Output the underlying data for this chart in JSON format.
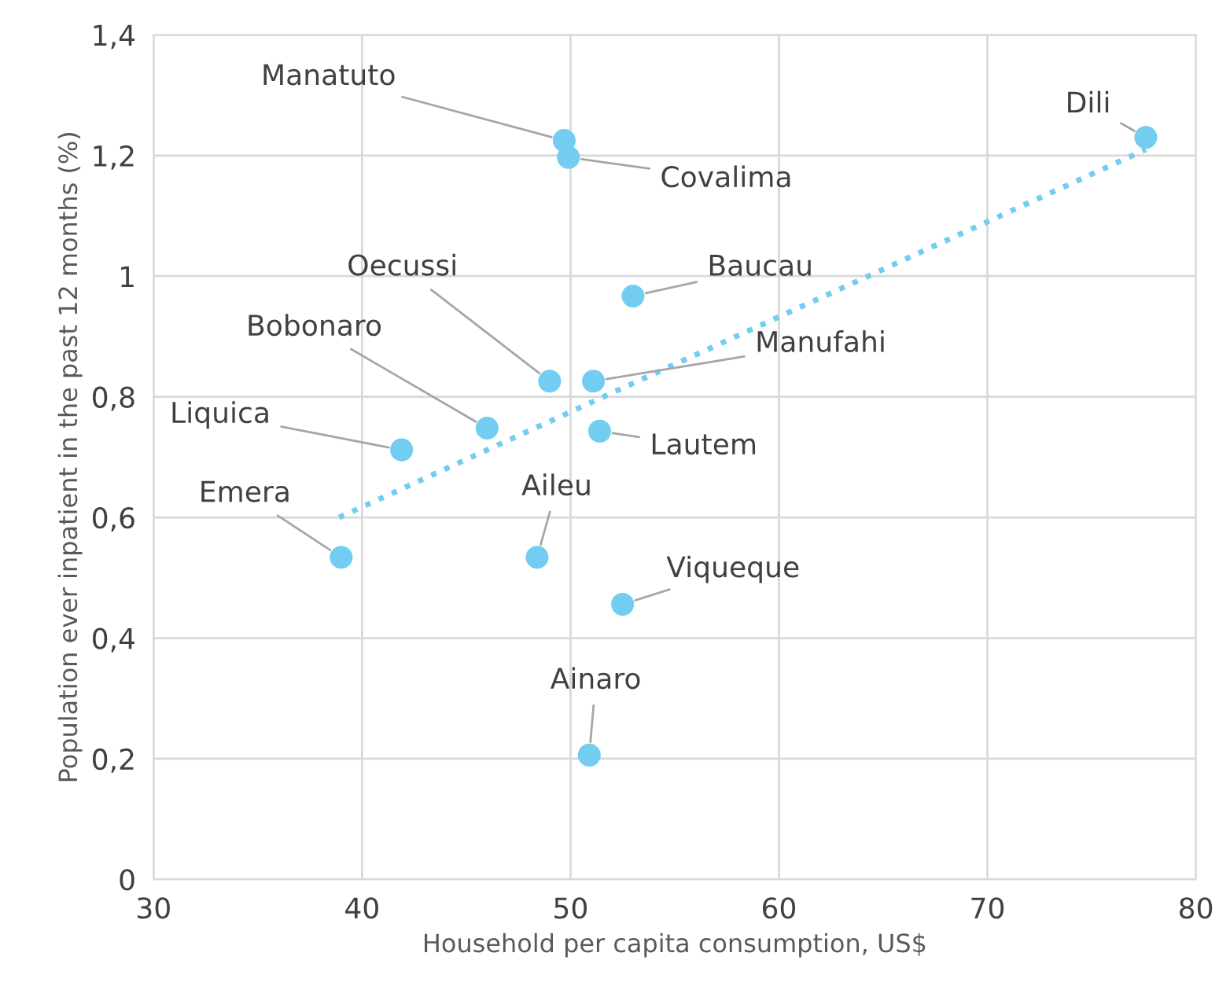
{
  "chart_data": {
    "type": "scatter",
    "xlabel": "Household per capita consumption, US$",
    "ylabel": "Population ever inpatient in the past 12 months (%)",
    "xlim": [
      30,
      80
    ],
    "xticks": [
      30,
      40,
      50,
      60,
      70,
      80
    ],
    "ylim": [
      0,
      1.4
    ],
    "yticks": [
      0,
      {
        "value": 0.2,
        "label": "0,2"
      },
      {
        "value": 0.4,
        "label": "0,4"
      },
      {
        "value": 0.6,
        "label": "0,6"
      },
      {
        "value": 0.8,
        "label": "0,8"
      },
      1,
      {
        "value": 1.2,
        "label": "1,2"
      },
      {
        "value": 1.4,
        "label": "1,4"
      }
    ],
    "grid": true,
    "series": [
      {
        "marker": "circle",
        "color": "#72cdf0",
        "x": [
          77.6,
          49.7,
          49.9,
          53.0,
          49.0,
          51.1,
          46.0,
          51.4,
          41.9,
          39.0,
          48.4,
          52.5,
          50.9
        ],
        "values": [
          1.23,
          1.225,
          1.197,
          0.967,
          0.826,
          0.826,
          0.748,
          0.743,
          0.712,
          0.534,
          0.534,
          0.456,
          0.206
        ]
      },
      {
        "type": "line",
        "color": "#72cdf0",
        "line_style": "dotted",
        "x": [
          38.9,
          77.6
        ],
        "values": [
          0.6,
          1.21
        ]
      }
    ],
    "annotations": [
      {
        "text": "Dili",
        "x": 77.6,
        "y": 1.23
      },
      {
        "text": "Manatuto",
        "x": 49.7,
        "y": 1.225
      },
      {
        "text": "Covalima",
        "x": 49.9,
        "y": 1.197
      },
      {
        "text": "Baucau",
        "x": 53.0,
        "y": 0.967
      },
      {
        "text": "Oecussi",
        "x": 49.0,
        "y": 0.826
      },
      {
        "text": "Manufahi",
        "x": 51.1,
        "y": 0.826
      },
      {
        "text": "Bobonaro",
        "x": 46.0,
        "y": 0.748
      },
      {
        "text": "Lautem",
        "x": 51.4,
        "y": 0.743
      },
      {
        "text": "Liquica",
        "x": 41.9,
        "y": 0.712
      },
      {
        "text": "Emera",
        "x": 39.0,
        "y": 0.534
      },
      {
        "text": "Aileu",
        "x": 48.4,
        "y": 0.534
      },
      {
        "text": "Viqueque",
        "x": 52.5,
        "y": 0.456
      },
      {
        "text": "Ainaro",
        "x": 50.9,
        "y": 0.206
      }
    ]
  }
}
